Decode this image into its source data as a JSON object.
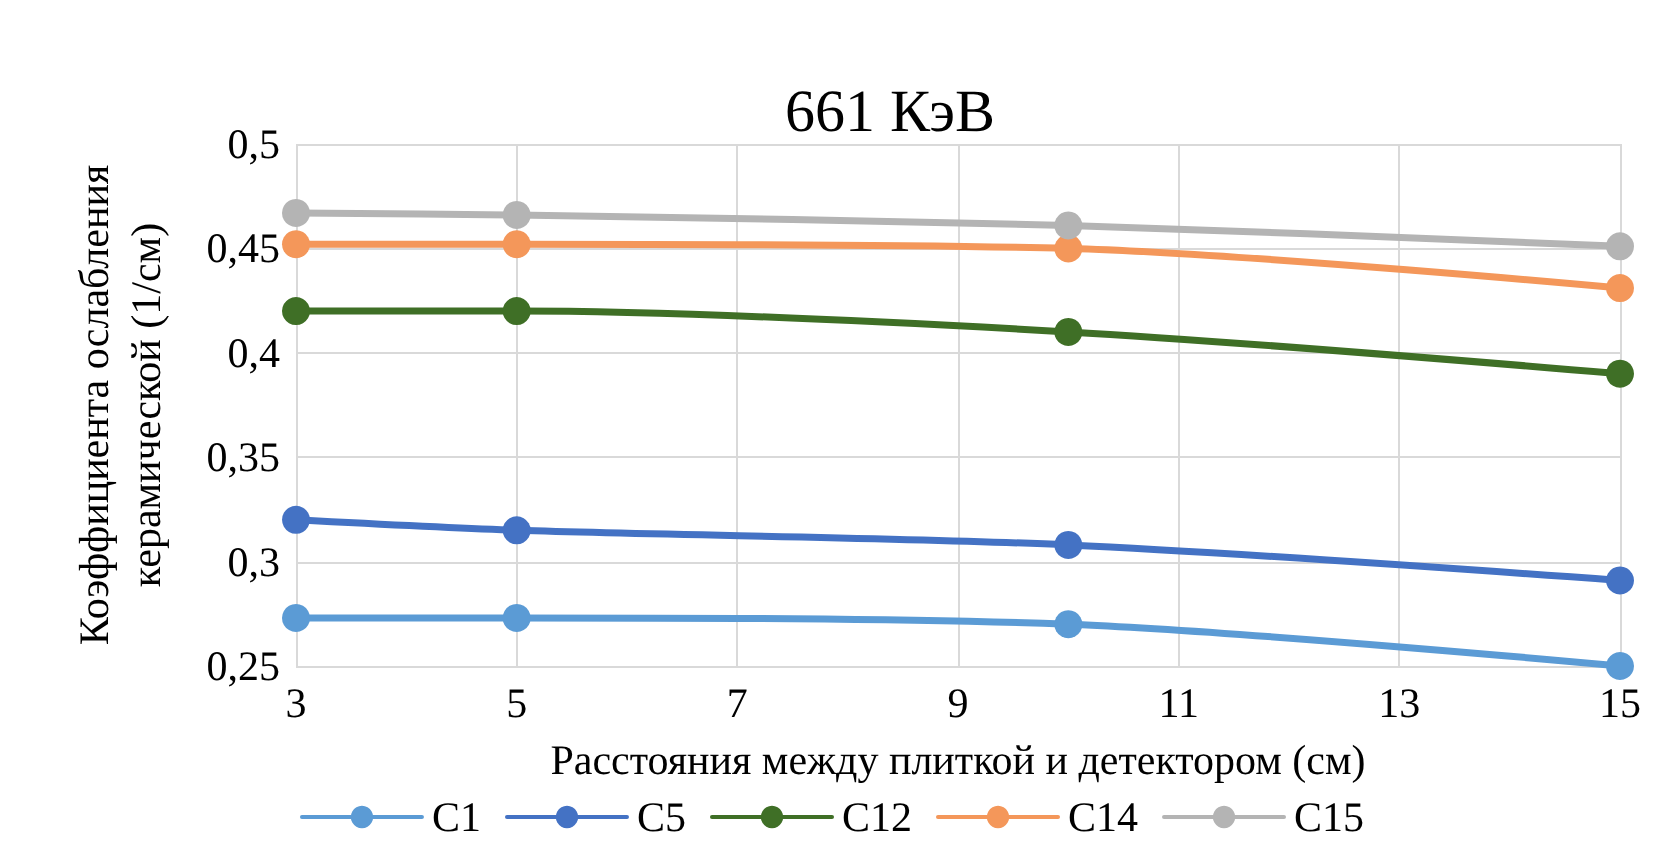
{
  "chart_data": {
    "type": "line",
    "title": "661 КэВ",
    "xlabel": "Расстояния между плиткой и детектором (см)",
    "ylabel": "Коэффициента ослабления\nкерамической (1/см)",
    "x": [
      3,
      5,
      10,
      15
    ],
    "series": [
      {
        "name": "C1",
        "color": "#5b9bd5",
        "values": [
          0.273,
          0.273,
          0.27,
          0.25
        ]
      },
      {
        "name": "C5",
        "color": "#4472c4",
        "values": [
          0.32,
          0.315,
          0.308,
          0.291
        ]
      },
      {
        "name": "C12",
        "color": "#3f6f26",
        "values": [
          0.42,
          0.42,
          0.41,
          0.39
        ]
      },
      {
        "name": "C14",
        "color": "#f4975a",
        "values": [
          0.452,
          0.452,
          0.45,
          0.431
        ]
      },
      {
        "name": "C15",
        "color": "#b4b4b4",
        "values": [
          0.467,
          0.466,
          0.461,
          0.451
        ]
      }
    ],
    "xlim": [
      3,
      15
    ],
    "xticks": [
      3,
      5,
      7,
      9,
      11,
      13,
      15
    ],
    "ylim": [
      0.25,
      0.5
    ],
    "yticks": [
      {
        "value": 0.25,
        "label": "0,25"
      },
      {
        "value": 0.3,
        "label": "0,3"
      },
      {
        "value": 0.35,
        "label": "0,35"
      },
      {
        "value": 0.4,
        "label": "0,4"
      },
      {
        "value": 0.45,
        "label": "0,45"
      },
      {
        "value": 0.5,
        "label": "0,5"
      }
    ],
    "grid": true,
    "legend": "bottom",
    "marker": "circle",
    "line_style": "solid"
  }
}
